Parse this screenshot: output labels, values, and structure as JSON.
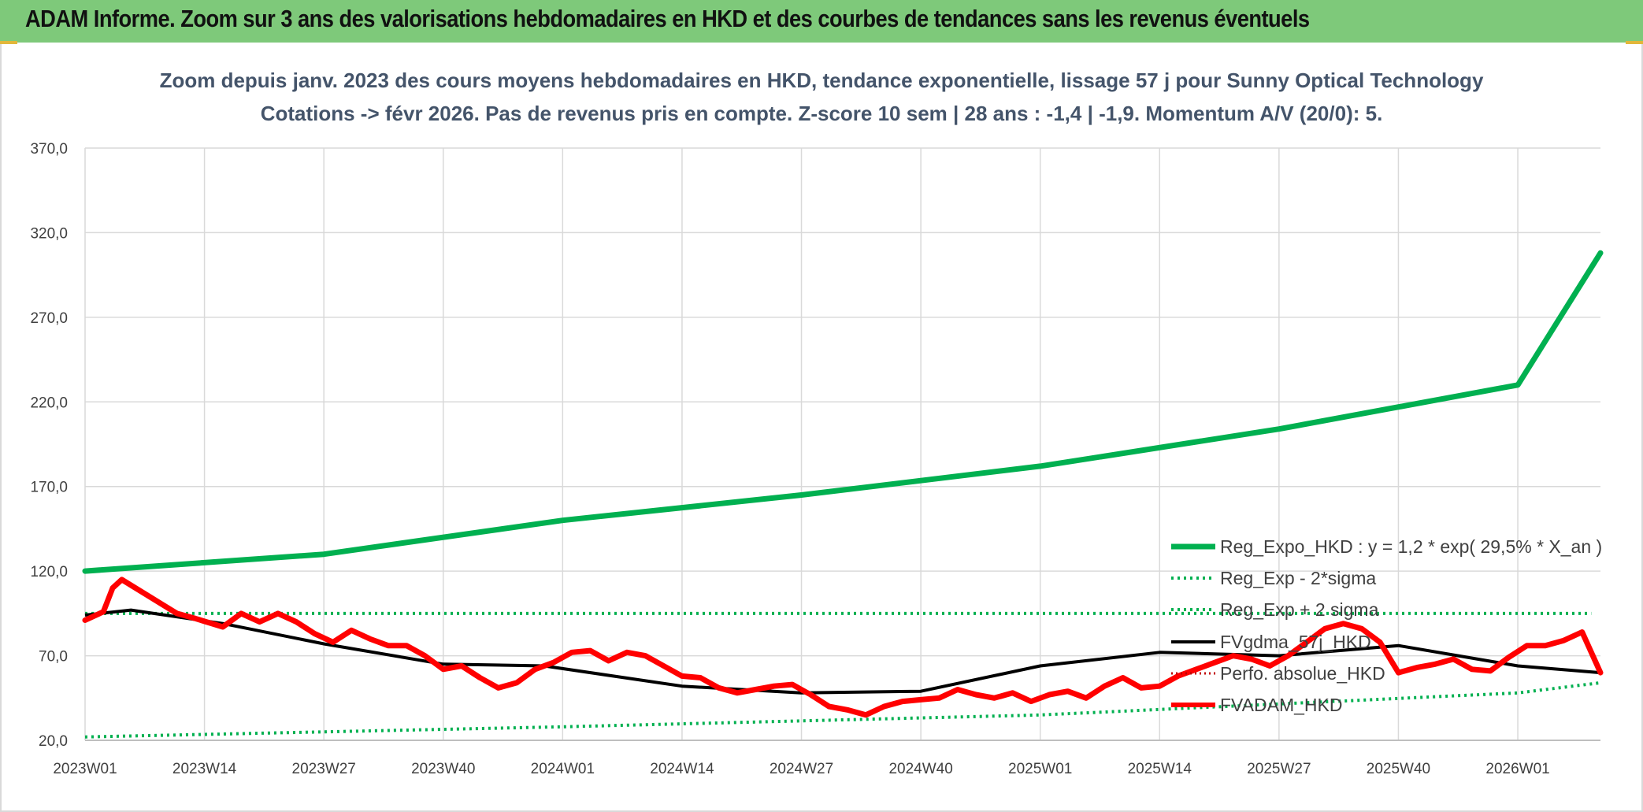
{
  "banner": {
    "title": "ADAM Informe. Zoom sur 3 ans des valorisations hebdomadaires en HKD et des courbes de tendances sans les revenus éventuels"
  },
  "colors": {
    "banner_bg": "#7ec97a",
    "reg_expo": "#00b050",
    "fvgdma": "#000000",
    "fvadam": "#ff0000",
    "perfo": "#c00000",
    "sigma": "#00b050",
    "subtitle": "#44546a"
  },
  "chart_data": {
    "type": "line",
    "title_line1": "Zoom depuis janv. 2023 des cours moyens hebdomadaires en HKD, tendance exponentielle, lissage 57 j pour Sunny Optical Technology",
    "title_line2": "Cotations -> févr 2026. Pas de revenus pris en compte. Z-score 10 sem | 28 ans : -1,4 | -1,9. Momentum A/V (20/0): 5.",
    "ylim": [
      20,
      370
    ],
    "yticks": [
      "20,0",
      "70,0",
      "120,0",
      "170,0",
      "220,0",
      "270,0",
      "320,0",
      "370,0"
    ],
    "ytick_values": [
      20,
      70,
      120,
      170,
      220,
      270,
      320,
      370
    ],
    "xticks": [
      "2023W01",
      "2023W14",
      "2023W27",
      "2023W40",
      "2024W01",
      "2024W14",
      "2024W27",
      "2024W40",
      "2025W01",
      "2025W14",
      "2025W27",
      "2025W40",
      "2026W01"
    ],
    "grid": true,
    "legend_position": "bottom-right",
    "x_week_range": [
      0,
      165
    ],
    "series": [
      {
        "name": "Reg_Expo_HKD : y = 1,2 * exp( 29,5% *  X_an )",
        "style": "solid-thick",
        "color": "#00b050",
        "points": [
          [
            0,
            120
          ],
          [
            26,
            130
          ],
          [
            52,
            150
          ],
          [
            78,
            165
          ],
          [
            104,
            182
          ],
          [
            130,
            204
          ],
          [
            156,
            230
          ],
          [
            165,
            308
          ]
        ]
      },
      {
        "name": "Reg_Exp - 2*sigma",
        "style": "dotted",
        "color": "#00b050",
        "points": [
          [
            0,
            22
          ],
          [
            52,
            28
          ],
          [
            104,
            35
          ],
          [
            156,
            48
          ],
          [
            165,
            54
          ]
        ]
      },
      {
        "name": "Reg_Exp + 2 sigma",
        "style": "dotted",
        "color": "#00b050",
        "points": [
          [
            0,
            95
          ],
          [
            14,
            95
          ],
          [
            164,
            95
          ]
        ]
      },
      {
        "name": "FVgdma_57j_HKD",
        "style": "solid",
        "color": "#000000",
        "points": [
          [
            0,
            94
          ],
          [
            5,
            97
          ],
          [
            15,
            89
          ],
          [
            26,
            77
          ],
          [
            39,
            65
          ],
          [
            50,
            64
          ],
          [
            65,
            52
          ],
          [
            78,
            48
          ],
          [
            91,
            49
          ],
          [
            104,
            64
          ],
          [
            117,
            72
          ],
          [
            130,
            70
          ],
          [
            143,
            76
          ],
          [
            156,
            64
          ],
          [
            165,
            60
          ]
        ]
      },
      {
        "name": "Perfo. absolue_HKD",
        "style": "dotted",
        "color": "#c00000",
        "points": []
      },
      {
        "name": "FVADAM_HKD",
        "style": "solid-thick",
        "color": "#ff0000",
        "points": [
          [
            0,
            91
          ],
          [
            2,
            96
          ],
          [
            3,
            110
          ],
          [
            4,
            115
          ],
          [
            7,
            105
          ],
          [
            10,
            95
          ],
          [
            12,
            92
          ],
          [
            15,
            87
          ],
          [
            17,
            95
          ],
          [
            19,
            90
          ],
          [
            21,
            95
          ],
          [
            23,
            90
          ],
          [
            25,
            83
          ],
          [
            27,
            78
          ],
          [
            29,
            85
          ],
          [
            31,
            80
          ],
          [
            33,
            76
          ],
          [
            35,
            76
          ],
          [
            37,
            70
          ],
          [
            39,
            62
          ],
          [
            41,
            64
          ],
          [
            43,
            57
          ],
          [
            45,
            51
          ],
          [
            47,
            54
          ],
          [
            49,
            62
          ],
          [
            51,
            66
          ],
          [
            53,
            72
          ],
          [
            55,
            73
          ],
          [
            57,
            67
          ],
          [
            59,
            72
          ],
          [
            61,
            70
          ],
          [
            63,
            64
          ],
          [
            65,
            58
          ],
          [
            67,
            57
          ],
          [
            69,
            51
          ],
          [
            71,
            48
          ],
          [
            73,
            50
          ],
          [
            75,
            52
          ],
          [
            77,
            53
          ],
          [
            79,
            47
          ],
          [
            81,
            40
          ],
          [
            83,
            38
          ],
          [
            85,
            35
          ],
          [
            87,
            40
          ],
          [
            89,
            43
          ],
          [
            91,
            44
          ],
          [
            93,
            45
          ],
          [
            95,
            50
          ],
          [
            97,
            47
          ],
          [
            99,
            45
          ],
          [
            101,
            48
          ],
          [
            103,
            43
          ],
          [
            105,
            47
          ],
          [
            107,
            49
          ],
          [
            109,
            45
          ],
          [
            111,
            52
          ],
          [
            113,
            57
          ],
          [
            115,
            51
          ],
          [
            117,
            52
          ],
          [
            119,
            58
          ],
          [
            121,
            62
          ],
          [
            123,
            66
          ],
          [
            125,
            70
          ],
          [
            127,
            68
          ],
          [
            129,
            64
          ],
          [
            131,
            70
          ],
          [
            133,
            78
          ],
          [
            135,
            86
          ],
          [
            137,
            89
          ],
          [
            139,
            86
          ],
          [
            141,
            78
          ],
          [
            143,
            60
          ],
          [
            145,
            63
          ],
          [
            147,
            65
          ],
          [
            149,
            68
          ],
          [
            151,
            62
          ],
          [
            153,
            61
          ],
          [
            155,
            69
          ],
          [
            157,
            76
          ],
          [
            159,
            76
          ],
          [
            161,
            79
          ],
          [
            163,
            84
          ],
          [
            165,
            60
          ]
        ]
      }
    ]
  },
  "legend": {
    "reg_expo": "Reg_Expo_HKD : y = 1,2 * exp( 29,5% *  X_an )",
    "minus_sigma": "Reg_Exp - 2*sigma",
    "plus_sigma": "Reg_Exp + 2 sigma",
    "fvgdma": "FVgdma_57j_HKD",
    "perfo": "Perfo. absolue_HKD",
    "fvadam": "FVADAM_HKD"
  }
}
